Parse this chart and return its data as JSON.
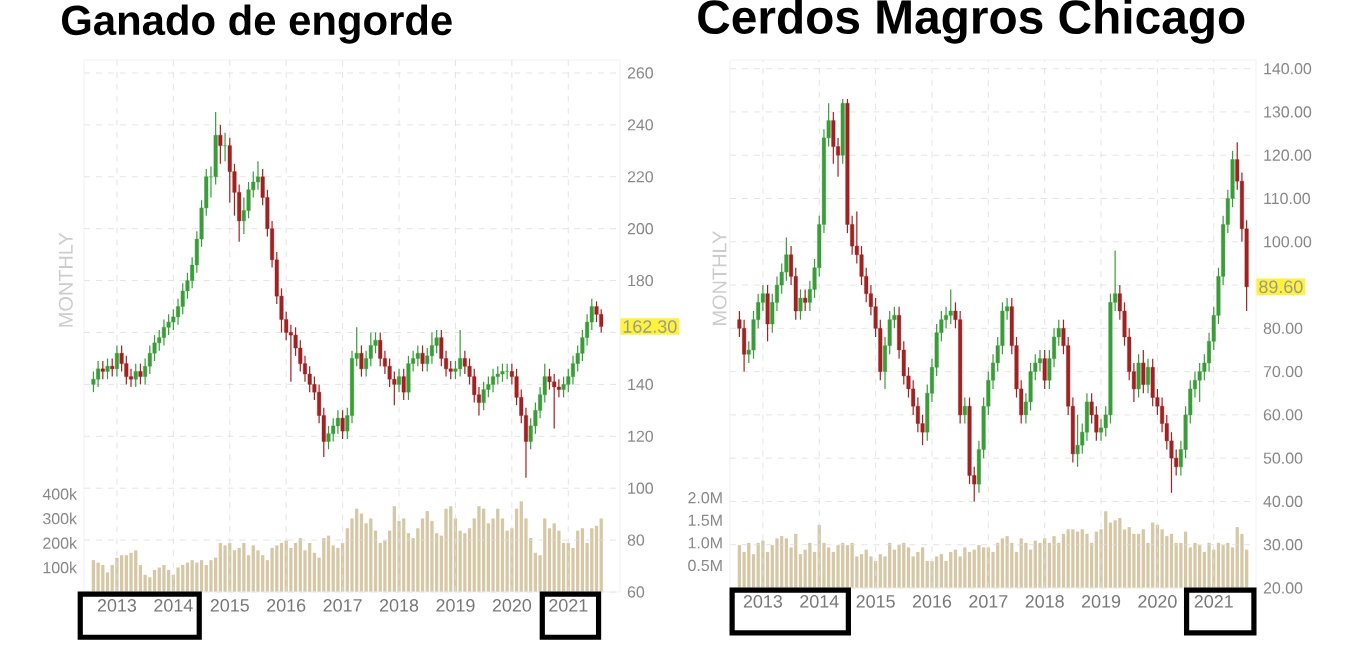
{
  "chart_data": [
    {
      "type": "candlestick",
      "title": "Ganado de engorde",
      "x": [
        "2012-08",
        "2012-09",
        "2012-10",
        "2012-11",
        "2012-12",
        "2013-01",
        "2013-02",
        "2013-03",
        "2013-04",
        "2013-05",
        "2013-06",
        "2013-07",
        "2013-08",
        "2013-09",
        "2013-10",
        "2013-11",
        "2013-12",
        "2014-01",
        "2014-02",
        "2014-03",
        "2014-04",
        "2014-05",
        "2014-06",
        "2014-07",
        "2014-08",
        "2014-09",
        "2014-10",
        "2014-11",
        "2014-12",
        "2015-01",
        "2015-02",
        "2015-03",
        "2015-04",
        "2015-05",
        "2015-06",
        "2015-07",
        "2015-08",
        "2015-09",
        "2015-10",
        "2015-11",
        "2015-12",
        "2016-01",
        "2016-02",
        "2016-03",
        "2016-04",
        "2016-05",
        "2016-06",
        "2016-07",
        "2016-08",
        "2016-09",
        "2016-10",
        "2016-11",
        "2016-12",
        "2017-01",
        "2017-02",
        "2017-03",
        "2017-04",
        "2017-05",
        "2017-06",
        "2017-07",
        "2017-08",
        "2017-09",
        "2017-10",
        "2017-11",
        "2017-12",
        "2018-01",
        "2018-02",
        "2018-03",
        "2018-04",
        "2018-05",
        "2018-06",
        "2018-07",
        "2018-08",
        "2018-09",
        "2018-10",
        "2018-11",
        "2018-12",
        "2019-01",
        "2019-02",
        "2019-03",
        "2019-04",
        "2019-05",
        "2019-06",
        "2019-07",
        "2019-08",
        "2019-09",
        "2019-10",
        "2019-11",
        "2019-12",
        "2020-01",
        "2020-02",
        "2020-03",
        "2020-04",
        "2020-05",
        "2020-06",
        "2020-07",
        "2020-08",
        "2020-09",
        "2020-10",
        "2020-11",
        "2020-12",
        "2021-01",
        "2021-02",
        "2021-03",
        "2021-04",
        "2021-05",
        "2021-06",
        "2021-07",
        "2021-08"
      ],
      "ohlc": [
        [
          140,
          145,
          137,
          142
        ],
        [
          142,
          149,
          139,
          146
        ],
        [
          146,
          149,
          142,
          145
        ],
        [
          145,
          150,
          142,
          147
        ],
        [
          147,
          150,
          143,
          146
        ],
        [
          146,
          155,
          143,
          152
        ],
        [
          152,
          155,
          145,
          148
        ],
        [
          148,
          151,
          140,
          143
        ],
        [
          143,
          146,
          139,
          142
        ],
        [
          142,
          148,
          139,
          145
        ],
        [
          145,
          148,
          140,
          143
        ],
        [
          143,
          150,
          140,
          147
        ],
        [
          147,
          155,
          144,
          152
        ],
        [
          152,
          159,
          149,
          156
        ],
        [
          156,
          161,
          153,
          158
        ],
        [
          158,
          165,
          155,
          162
        ],
        [
          162,
          167,
          159,
          164
        ],
        [
          164,
          169,
          161,
          166
        ],
        [
          166,
          173,
          163,
          170
        ],
        [
          170,
          179,
          167,
          176
        ],
        [
          176,
          183,
          173,
          180
        ],
        [
          180,
          189,
          177,
          186
        ],
        [
          186,
          199,
          183,
          196
        ],
        [
          196,
          211,
          193,
          208
        ],
        [
          208,
          223,
          205,
          220
        ],
        [
          220,
          224,
          212,
          220
        ],
        [
          220,
          245,
          217,
          236
        ],
        [
          236,
          240,
          225,
          232
        ],
        [
          232,
          237,
          226,
          232
        ],
        [
          232,
          235,
          210,
          222
        ],
        [
          222,
          225,
          205,
          214
        ],
        [
          214,
          217,
          195,
          203
        ],
        [
          203,
          212,
          198,
          207
        ],
        [
          207,
          218,
          204,
          215
        ],
        [
          215,
          222,
          212,
          218
        ],
        [
          218,
          226,
          215,
          220
        ],
        [
          220,
          223,
          209,
          212
        ],
        [
          212,
          215,
          197,
          200
        ],
        [
          200,
          203,
          185,
          188
        ],
        [
          188,
          191,
          171,
          174
        ],
        [
          174,
          177,
          160,
          165
        ],
        [
          165,
          168,
          157,
          160
        ],
        [
          160,
          163,
          141,
          159
        ],
        [
          159,
          162,
          151,
          154
        ],
        [
          154,
          157,
          145,
          148
        ],
        [
          148,
          151,
          141,
          144
        ],
        [
          144,
          147,
          137,
          140
        ],
        [
          140,
          143,
          134,
          137
        ],
        [
          137,
          140,
          125,
          128
        ],
        [
          128,
          131,
          112,
          118
        ],
        [
          118,
          124,
          115,
          121
        ],
        [
          121,
          127,
          118,
          124
        ],
        [
          124,
          130,
          121,
          127
        ],
        [
          127,
          130,
          119,
          122
        ],
        [
          122,
          131,
          119,
          128
        ],
        [
          128,
          153,
          125,
          150
        ],
        [
          150,
          162,
          147,
          152
        ],
        [
          152,
          155,
          143,
          146
        ],
        [
          146,
          153,
          143,
          150
        ],
        [
          150,
          160,
          147,
          155
        ],
        [
          155,
          160,
          152,
          157
        ],
        [
          157,
          160,
          147,
          150
        ],
        [
          150,
          153,
          144,
          147
        ],
        [
          147,
          150,
          139,
          142
        ],
        [
          142,
          145,
          132,
          140
        ],
        [
          140,
          146,
          137,
          143
        ],
        [
          143,
          146,
          134,
          137
        ],
        [
          137,
          151,
          134,
          148
        ],
        [
          148,
          153,
          145,
          150
        ],
        [
          150,
          155,
          147,
          152
        ],
        [
          152,
          155,
          145,
          148
        ],
        [
          148,
          154,
          145,
          151
        ],
        [
          151,
          160,
          148,
          155
        ],
        [
          155,
          161,
          152,
          158
        ],
        [
          158,
          161,
          147,
          150
        ],
        [
          150,
          153,
          143,
          146
        ],
        [
          146,
          149,
          142,
          145
        ],
        [
          145,
          149,
          142,
          146
        ],
        [
          146,
          161,
          143,
          150
        ],
        [
          150,
          153,
          144,
          147
        ],
        [
          147,
          150,
          140,
          143
        ],
        [
          143,
          146,
          133,
          136
        ],
        [
          136,
          139,
          128,
          133
        ],
        [
          133,
          141,
          130,
          138
        ],
        [
          138,
          143,
          135,
          140
        ],
        [
          140,
          146,
          137,
          143
        ],
        [
          143,
          147,
          140,
          144
        ],
        [
          144,
          148,
          141,
          145
        ],
        [
          145,
          148,
          142,
          145
        ],
        [
          145,
          148,
          140,
          143
        ],
        [
          143,
          146,
          132,
          135
        ],
        [
          135,
          138,
          125,
          128
        ],
        [
          128,
          131,
          104,
          118
        ],
        [
          118,
          127,
          115,
          124
        ],
        [
          124,
          133,
          121,
          130
        ],
        [
          130,
          139,
          127,
          136
        ],
        [
          136,
          148,
          133,
          143
        ],
        [
          143,
          146,
          138,
          141
        ],
        [
          141,
          144,
          123,
          139
        ],
        [
          139,
          142,
          135,
          138
        ],
        [
          138,
          143,
          135,
          140
        ],
        [
          140,
          146,
          137,
          143
        ],
        [
          143,
          151,
          140,
          148
        ],
        [
          148,
          155,
          145,
          152
        ],
        [
          152,
          161,
          149,
          158
        ],
        [
          158,
          167,
          155,
          164
        ],
        [
          164,
          173,
          161,
          170
        ],
        [
          170,
          172,
          164,
          167
        ],
        [
          167,
          169,
          160,
          162.3
        ]
      ],
      "colors": [
        "#3a9d3a",
        "#3a9d3a",
        "#a02222",
        "#3a9d3a",
        "#a02222",
        "#3a9d3a",
        "#a02222",
        "#a02222",
        "#a02222",
        "#3a9d3a",
        "#a02222",
        "#3a9d3a",
        "#3a9d3a",
        "#3a9d3a",
        "#3a9d3a",
        "#3a9d3a",
        "#3a9d3a",
        "#3a9d3a",
        "#3a9d3a",
        "#3a9d3a",
        "#3a9d3a",
        "#3a9d3a",
        "#3a9d3a",
        "#3a9d3a",
        "#3a9d3a",
        "#3a9d3a",
        "#3a9d3a",
        "#a02222",
        "#3a9d3a",
        "#a02222",
        "#a02222",
        "#a02222",
        "#3a9d3a",
        "#3a9d3a",
        "#3a9d3a",
        "#3a9d3a",
        "#a02222",
        "#a02222",
        "#a02222",
        "#a02222",
        "#a02222",
        "#a02222",
        "#a02222",
        "#a02222",
        "#a02222",
        "#a02222",
        "#a02222",
        "#a02222",
        "#a02222",
        "#a02222",
        "#3a9d3a",
        "#3a9d3a",
        "#3a9d3a",
        "#a02222",
        "#3a9d3a",
        "#3a9d3a",
        "#3a9d3a",
        "#a02222",
        "#3a9d3a",
        "#3a9d3a",
        "#3a9d3a",
        "#a02222",
        "#a02222",
        "#a02222",
        "#a02222",
        "#3a9d3a",
        "#a02222",
        "#3a9d3a",
        "#3a9d3a",
        "#3a9d3a",
        "#a02222",
        "#3a9d3a",
        "#3a9d3a",
        "#3a9d3a",
        "#a02222",
        "#a02222",
        "#a02222",
        "#3a9d3a",
        "#3a9d3a",
        "#a02222",
        "#a02222",
        "#a02222",
        "#a02222",
        "#3a9d3a",
        "#3a9d3a",
        "#3a9d3a",
        "#3a9d3a",
        "#3a9d3a",
        "#3a9d3a",
        "#a02222",
        "#a02222",
        "#a02222",
        "#a02222",
        "#3a9d3a",
        "#3a9d3a",
        "#3a9d3a",
        "#3a9d3a",
        "#a02222",
        "#a02222",
        "#a02222",
        "#3a9d3a",
        "#3a9d3a",
        "#3a9d3a",
        "#3a9d3a",
        "#3a9d3a",
        "#3a9d3a",
        "#3a9d3a",
        "#a02222",
        "#a02222"
      ],
      "series": [
        {
          "type": "bar",
          "axis": "y2",
          "color": "#d6c8a6",
          "values": [
            130000,
            120000,
            110000,
            80000,
            110000,
            140000,
            150000,
            150000,
            160000,
            170000,
            110000,
            70000,
            60000,
            90000,
            100000,
            110000,
            90000,
            70000,
            100000,
            110000,
            120000,
            130000,
            120000,
            130000,
            110000,
            130000,
            140000,
            200000,
            190000,
            200000,
            170000,
            180000,
            200000,
            150000,
            190000,
            170000,
            150000,
            130000,
            180000,
            190000,
            200000,
            210000,
            180000,
            200000,
            220000,
            170000,
            200000,
            160000,
            140000,
            220000,
            230000,
            190000,
            180000,
            200000,
            260000,
            300000,
            340000,
            320000,
            280000,
            300000,
            250000,
            200000,
            210000,
            250000,
            350000,
            290000,
            300000,
            240000,
            220000,
            260000,
            300000,
            330000,
            290000,
            240000,
            230000,
            340000,
            350000,
            300000,
            250000,
            240000,
            260000,
            300000,
            350000,
            340000,
            280000,
            300000,
            340000,
            300000,
            250000,
            260000,
            340000,
            370000,
            300000,
            220000,
            160000,
            150000,
            300000,
            260000,
            280000,
            250000,
            200000,
            200000,
            180000,
            250000,
            260000,
            200000,
            260000,
            270000,
            300000
          ]
        }
      ],
      "xlim": [
        "2012-06",
        "2021-12"
      ],
      "xticks": [
        "2013",
        "2014",
        "2015",
        "2016",
        "2017",
        "2018",
        "2019",
        "2020",
        "2021"
      ],
      "ylim": [
        60,
        265
      ],
      "yticks": [
        60,
        80,
        100,
        120,
        140,
        {
          "value": 160,
          "label": null
        },
        180,
        200,
        220,
        240,
        260
      ],
      "y2lim": [
        0,
        2170000
      ],
      "y2ticks": [
        {
          "value": 100000,
          "label": "100k"
        },
        {
          "value": 200000,
          "label": "200k"
        },
        {
          "value": 300000,
          "label": "300k"
        },
        {
          "value": 400000,
          "label": "400k"
        }
      ],
      "grid": true,
      "annotations": [
        "162.30",
        "MONTHLY"
      ]
    },
    {
      "type": "candlestick",
      "title": "Cerdos Magros Chicago",
      "x": [
        "2012-08",
        "2012-09",
        "2012-10",
        "2012-11",
        "2012-12",
        "2013-01",
        "2013-02",
        "2013-03",
        "2013-04",
        "2013-05",
        "2013-06",
        "2013-07",
        "2013-08",
        "2013-09",
        "2013-10",
        "2013-11",
        "2013-12",
        "2014-01",
        "2014-02",
        "2014-03",
        "2014-04",
        "2014-05",
        "2014-06",
        "2014-07",
        "2014-08",
        "2014-09",
        "2014-10",
        "2014-11",
        "2014-12",
        "2015-01",
        "2015-02",
        "2015-03",
        "2015-04",
        "2015-05",
        "2015-06",
        "2015-07",
        "2015-08",
        "2015-09",
        "2015-10",
        "2015-11",
        "2015-12",
        "2016-01",
        "2016-02",
        "2016-03",
        "2016-04",
        "2016-05",
        "2016-06",
        "2016-07",
        "2016-08",
        "2016-09",
        "2016-10",
        "2016-11",
        "2016-12",
        "2017-01",
        "2017-02",
        "2017-03",
        "2017-04",
        "2017-05",
        "2017-06",
        "2017-07",
        "2017-08",
        "2017-09",
        "2017-10",
        "2017-11",
        "2017-12",
        "2018-01",
        "2018-02",
        "2018-03",
        "2018-04",
        "2018-05",
        "2018-06",
        "2018-07",
        "2018-08",
        "2018-09",
        "2018-10",
        "2018-11",
        "2018-12",
        "2019-01",
        "2019-02",
        "2019-03",
        "2019-04",
        "2019-05",
        "2019-06",
        "2019-07",
        "2019-08",
        "2019-09",
        "2019-10",
        "2019-11",
        "2019-12",
        "2020-01",
        "2020-02",
        "2020-03",
        "2020-04",
        "2020-05",
        "2020-06",
        "2020-07",
        "2020-08",
        "2020-09",
        "2020-10",
        "2020-11",
        "2020-12",
        "2021-01",
        "2021-02",
        "2021-03",
        "2021-04",
        "2021-05",
        "2021-06",
        "2021-07",
        "2021-08"
      ],
      "ohlc": [
        [
          82,
          84,
          78,
          80
        ],
        [
          80,
          82,
          70,
          74
        ],
        [
          74,
          77,
          72,
          75
        ],
        [
          75,
          84,
          73,
          82
        ],
        [
          82,
          88,
          80,
          86
        ],
        [
          86,
          90,
          84,
          88
        ],
        [
          88,
          90,
          77,
          81
        ],
        [
          81,
          88,
          79,
          86
        ],
        [
          86,
          92,
          84,
          90
        ],
        [
          90,
          95,
          88,
          93
        ],
        [
          93,
          101,
          91,
          97
        ],
        [
          97,
          99,
          90,
          92
        ],
        [
          92,
          94,
          82,
          84
        ],
        [
          84,
          89,
          82,
          87
        ],
        [
          87,
          89,
          84,
          86
        ],
        [
          86,
          91,
          84,
          89
        ],
        [
          89,
          96,
          87,
          94
        ],
        [
          94,
          106,
          92,
          104
        ],
        [
          104,
          126,
          102,
          124
        ],
        [
          124,
          132,
          122,
          128
        ],
        [
          128,
          130,
          118,
          122
        ],
        [
          122,
          124,
          115,
          120
        ],
        [
          120,
          133,
          118,
          132
        ],
        [
          132,
          133,
          102,
          104
        ],
        [
          104,
          106,
          97,
          99
        ],
        [
          99,
          107,
          95,
          97
        ],
        [
          97,
          99,
          90,
          92
        ],
        [
          92,
          94,
          86,
          88
        ],
        [
          88,
          90,
          83,
          85
        ],
        [
          85,
          87,
          78,
          80
        ],
        [
          80,
          82,
          68,
          70
        ],
        [
          70,
          78,
          66,
          76
        ],
        [
          76,
          84,
          74,
          82
        ],
        [
          82,
          85,
          80,
          83
        ],
        [
          83,
          85,
          73,
          75
        ],
        [
          75,
          77,
          67,
          69
        ],
        [
          69,
          71,
          64,
          66
        ],
        [
          66,
          68,
          60,
          62
        ],
        [
          62,
          64,
          56,
          58
        ],
        [
          58,
          60,
          53,
          56
        ],
        [
          56,
          67,
          54,
          65
        ],
        [
          65,
          73,
          63,
          71
        ],
        [
          71,
          81,
          69,
          79
        ],
        [
          79,
          84,
          77,
          82
        ],
        [
          82,
          85,
          80,
          83
        ],
        [
          83,
          89,
          81,
          84
        ],
        [
          84,
          86,
          80,
          82
        ],
        [
          82,
          84,
          58,
          60
        ],
        [
          60,
          64,
          58,
          62
        ],
        [
          62,
          64,
          44,
          46
        ],
        [
          46,
          48,
          40,
          44
        ],
        [
          44,
          54,
          42,
          52
        ],
        [
          52,
          64,
          50,
          62
        ],
        [
          62,
          70,
          60,
          68
        ],
        [
          68,
          74,
          66,
          72
        ],
        [
          72,
          78,
          70,
          76
        ],
        [
          76,
          86,
          74,
          84
        ],
        [
          84,
          87,
          82,
          85
        ],
        [
          85,
          87,
          74,
          76
        ],
        [
          76,
          78,
          64,
          66
        ],
        [
          66,
          68,
          58,
          60
        ],
        [
          60,
          65,
          58,
          63
        ],
        [
          63,
          72,
          61,
          70
        ],
        [
          70,
          74,
          68,
          72
        ],
        [
          72,
          75,
          70,
          73
        ],
        [
          73,
          75,
          66,
          68
        ],
        [
          68,
          75,
          66,
          73
        ],
        [
          73,
          80,
          71,
          78
        ],
        [
          78,
          82,
          76,
          80
        ],
        [
          80,
          82,
          74,
          76
        ],
        [
          76,
          78,
          60,
          62
        ],
        [
          62,
          64,
          49,
          51
        ],
        [
          51,
          60,
          48,
          53
        ],
        [
          53,
          58,
          51,
          56
        ],
        [
          56,
          65,
          54,
          63
        ],
        [
          63,
          65,
          58,
          60
        ],
        [
          60,
          62,
          54,
          56
        ],
        [
          56,
          59,
          54,
          57
        ],
        [
          57,
          62,
          55,
          60
        ],
        [
          60,
          88,
          58,
          86
        ],
        [
          86,
          98,
          84,
          88
        ],
        [
          88,
          90,
          82,
          84
        ],
        [
          84,
          86,
          76,
          78
        ],
        [
          78,
          80,
          68,
          70
        ],
        [
          70,
          72,
          63,
          66
        ],
        [
          66,
          74,
          64,
          72
        ],
        [
          72,
          75,
          65,
          67
        ],
        [
          67,
          73,
          65,
          71
        ],
        [
          71,
          73,
          62,
          64
        ],
        [
          64,
          66,
          60,
          62
        ],
        [
          62,
          64,
          56,
          58
        ],
        [
          58,
          60,
          52,
          54
        ],
        [
          54,
          56,
          42,
          50
        ],
        [
          50,
          52,
          46,
          48
        ],
        [
          48,
          54,
          46,
          52
        ],
        [
          52,
          62,
          50,
          60
        ],
        [
          60,
          68,
          58,
          66
        ],
        [
          66,
          70,
          64,
          68
        ],
        [
          68,
          72,
          63,
          70
        ],
        [
          70,
          74,
          68,
          72
        ],
        [
          72,
          79,
          70,
          77
        ],
        [
          77,
          85,
          75,
          83
        ],
        [
          83,
          94,
          81,
          92
        ],
        [
          92,
          106,
          90,
          104
        ],
        [
          104,
          112,
          102,
          110
        ],
        [
          110,
          121,
          108,
          119
        ],
        [
          119,
          123,
          112,
          114
        ],
        [
          114,
          116,
          100,
          103
        ],
        [
          103,
          105,
          84,
          89.6
        ]
      ],
      "colors": [
        "#a02222",
        "#a02222",
        "#3a9d3a",
        "#3a9d3a",
        "#3a9d3a",
        "#3a9d3a",
        "#a02222",
        "#3a9d3a",
        "#3a9d3a",
        "#3a9d3a",
        "#3a9d3a",
        "#a02222",
        "#a02222",
        "#3a9d3a",
        "#a02222",
        "#3a9d3a",
        "#3a9d3a",
        "#3a9d3a",
        "#3a9d3a",
        "#3a9d3a",
        "#a02222",
        "#a02222",
        "#3a9d3a",
        "#a02222",
        "#a02222",
        "#a02222",
        "#a02222",
        "#a02222",
        "#a02222",
        "#a02222",
        "#a02222",
        "#3a9d3a",
        "#3a9d3a",
        "#3a9d3a",
        "#a02222",
        "#a02222",
        "#a02222",
        "#a02222",
        "#a02222",
        "#a02222",
        "#3a9d3a",
        "#3a9d3a",
        "#3a9d3a",
        "#3a9d3a",
        "#3a9d3a",
        "#3a9d3a",
        "#a02222",
        "#a02222",
        "#3a9d3a",
        "#a02222",
        "#a02222",
        "#3a9d3a",
        "#3a9d3a",
        "#3a9d3a",
        "#3a9d3a",
        "#3a9d3a",
        "#3a9d3a",
        "#3a9d3a",
        "#a02222",
        "#a02222",
        "#a02222",
        "#3a9d3a",
        "#3a9d3a",
        "#3a9d3a",
        "#3a9d3a",
        "#a02222",
        "#3a9d3a",
        "#3a9d3a",
        "#3a9d3a",
        "#a02222",
        "#a02222",
        "#a02222",
        "#3a9d3a",
        "#3a9d3a",
        "#3a9d3a",
        "#a02222",
        "#a02222",
        "#3a9d3a",
        "#3a9d3a",
        "#3a9d3a",
        "#3a9d3a",
        "#a02222",
        "#a02222",
        "#a02222",
        "#a02222",
        "#3a9d3a",
        "#a02222",
        "#3a9d3a",
        "#a02222",
        "#a02222",
        "#a02222",
        "#a02222",
        "#a02222",
        "#a02222",
        "#3a9d3a",
        "#3a9d3a",
        "#3a9d3a",
        "#3a9d3a",
        "#3a9d3a",
        "#3a9d3a",
        "#3a9d3a",
        "#3a9d3a",
        "#3a9d3a",
        "#3a9d3a",
        "#3a9d3a",
        "#3a9d3a",
        "#a02222",
        "#a02222",
        "#a02222"
      ],
      "series": [
        {
          "type": "bar",
          "axis": "y2",
          "color": "#d6c8a6",
          "values": [
            950000,
            800000,
            1000000,
            750000,
            1000000,
            1050000,
            800000,
            950000,
            1100000,
            1150000,
            1100000,
            900000,
            1200000,
            750000,
            850000,
            1000000,
            800000,
            1400000,
            1000000,
            900000,
            800000,
            950000,
            1000000,
            950000,
            1000000,
            700000,
            750000,
            850000,
            700000,
            600000,
            750000,
            700000,
            1000000,
            850000,
            950000,
            1000000,
            900000,
            700000,
            800000,
            900000,
            600000,
            600000,
            700000,
            750000,
            600000,
            800000,
            850000,
            700000,
            900000,
            800000,
            850000,
            950000,
            900000,
            900000,
            800000,
            1000000,
            1100000,
            1150000,
            1000000,
            800000,
            1100000,
            1000000,
            850000,
            1050000,
            1000000,
            1100000,
            1000000,
            1150000,
            1000000,
            1200000,
            1300000,
            1300000,
            1250000,
            1300000,
            1200000,
            1000000,
            1250000,
            1300000,
            1700000,
            1450000,
            1500000,
            1550000,
            1300000,
            1350000,
            1200000,
            1200000,
            1300000,
            1000000,
            1450000,
            1400000,
            1300000,
            1150000,
            1200000,
            1000000,
            1000000,
            1250000,
            900000,
            1000000,
            950000,
            800000,
            1000000,
            850000,
            1000000,
            950000,
            1000000,
            900000,
            1350000,
            1200000,
            850000
          ]
        }
      ],
      "xlim": [
        "2012-06",
        "2021-10"
      ],
      "xticks": [
        "2013",
        "2014",
        "2015",
        "2016",
        "2017",
        "2018",
        "2019",
        "2020",
        "2021"
      ],
      "ylim": [
        20,
        142
      ],
      "yticks": [
        {
          "value": 20,
          "label": "20.00"
        },
        {
          "value": 30,
          "label": "30.00"
        },
        {
          "value": 40,
          "label": "40.00"
        },
        {
          "value": 50,
          "label": "50.00"
        },
        {
          "value": 60,
          "label": "60.00"
        },
        {
          "value": 70,
          "label": "70.00"
        },
        {
          "value": 80,
          "label": "80.00"
        },
        {
          "value": 90,
          "label": null
        },
        {
          "value": 100,
          "label": "100.00"
        },
        {
          "value": 110,
          "label": "110.00"
        },
        {
          "value": 120,
          "label": "120.00"
        },
        {
          "value": 130,
          "label": "130.00"
        },
        {
          "value": 140,
          "label": "140.00"
        }
      ],
      "y2lim": [
        0,
        11700000
      ],
      "y2ticks": [
        {
          "value": 500000,
          "label": "0.5M"
        },
        {
          "value": 1000000,
          "label": "1.0M"
        },
        {
          "value": 1500000,
          "label": "1.5M"
        },
        {
          "value": 2000000,
          "label": "2.0M"
        }
      ],
      "grid": true,
      "annotations": [
        "89.60",
        "MONTHLY"
      ]
    }
  ]
}
